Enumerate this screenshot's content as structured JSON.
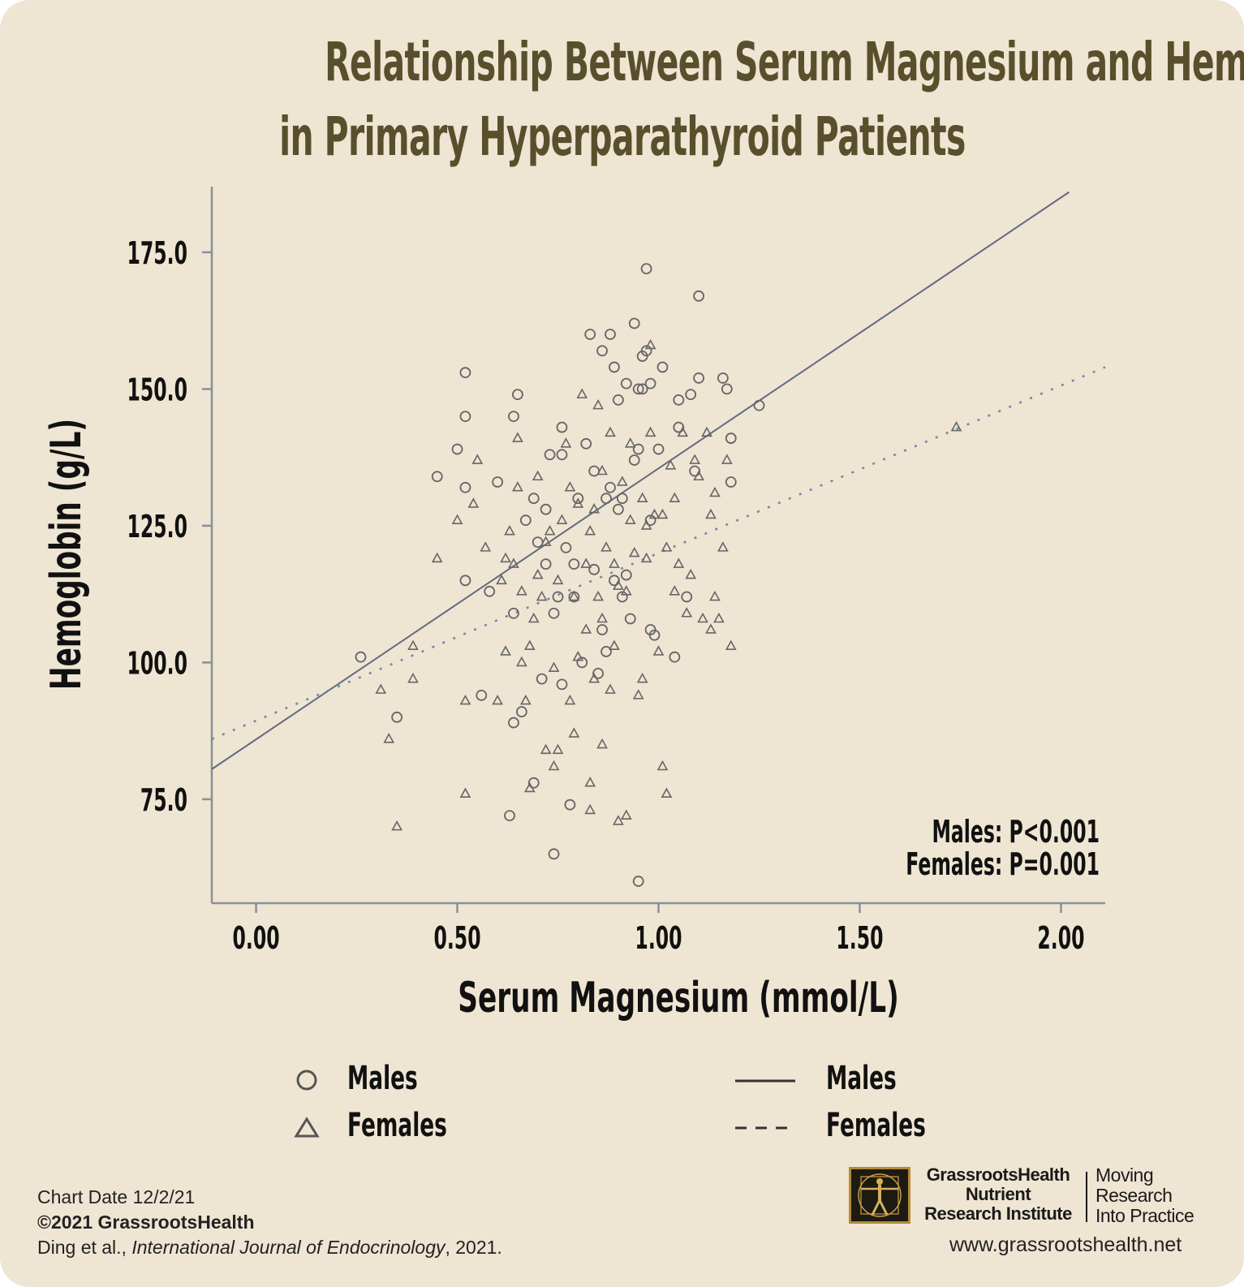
{
  "title": {
    "line1": "Relationship Between Serum Magnesium and Hemoglobin",
    "line2": "in Primary Hyperparathyroid Patients"
  },
  "chart_data": {
    "type": "scatter",
    "title": "Relationship Between Serum Magnesium and Hemoglobin in Primary Hyperparathyroid Patients",
    "xlabel": "Serum Magnesium (mmol/L)",
    "ylabel": "Hemoglobin (g/L)",
    "xlim": [
      -0.11,
      2.11
    ],
    "ylim": [
      56,
      187
    ],
    "xticks": [
      0.0,
      0.5,
      1.0,
      1.5,
      2.0
    ],
    "xtick_labels": [
      "0.00",
      "0.50",
      "1.00",
      "1.50",
      "2.00"
    ],
    "yticks": [
      75,
      100,
      125,
      150,
      175
    ],
    "ytick_labels": [
      "75.0",
      "100.0",
      "125.0",
      "150.0",
      "175.0"
    ],
    "grid": false,
    "annotations": [
      "Males: P<0.001",
      "Females: P=0.001"
    ],
    "series": [
      {
        "name": "Males",
        "marker": "circle",
        "points": [
          [
            0.26,
            101
          ],
          [
            0.35,
            90
          ],
          [
            0.45,
            134
          ],
          [
            0.5,
            139
          ],
          [
            0.52,
            153
          ],
          [
            0.52,
            145
          ],
          [
            0.52,
            132
          ],
          [
            0.52,
            115
          ],
          [
            0.56,
            94
          ],
          [
            0.58,
            113
          ],
          [
            0.6,
            133
          ],
          [
            0.63,
            72
          ],
          [
            0.64,
            109
          ],
          [
            0.64,
            89
          ],
          [
            0.64,
            145
          ],
          [
            0.65,
            149
          ],
          [
            0.66,
            91
          ],
          [
            0.67,
            126
          ],
          [
            0.69,
            78
          ],
          [
            0.69,
            130
          ],
          [
            0.7,
            122
          ],
          [
            0.71,
            97
          ],
          [
            0.72,
            118
          ],
          [
            0.72,
            128
          ],
          [
            0.73,
            138
          ],
          [
            0.74,
            65
          ],
          [
            0.74,
            109
          ],
          [
            0.75,
            112
          ],
          [
            0.76,
            143
          ],
          [
            0.76,
            96
          ],
          [
            0.76,
            138
          ],
          [
            0.77,
            121
          ],
          [
            0.78,
            74
          ],
          [
            0.79,
            112
          ],
          [
            0.79,
            118
          ],
          [
            0.8,
            130
          ],
          [
            0.81,
            100
          ],
          [
            0.82,
            140
          ],
          [
            0.83,
            160
          ],
          [
            0.84,
            117
          ],
          [
            0.84,
            135
          ],
          [
            0.85,
            98
          ],
          [
            0.86,
            157
          ],
          [
            0.86,
            106
          ],
          [
            0.87,
            102
          ],
          [
            0.87,
            130
          ],
          [
            0.88,
            160
          ],
          [
            0.88,
            132
          ],
          [
            0.89,
            154
          ],
          [
            0.89,
            115
          ],
          [
            0.9,
            148
          ],
          [
            0.9,
            128
          ],
          [
            0.91,
            130
          ],
          [
            0.91,
            112
          ],
          [
            0.92,
            151
          ],
          [
            0.92,
            116
          ],
          [
            0.93,
            108
          ],
          [
            0.94,
            162
          ],
          [
            0.94,
            137
          ],
          [
            0.95,
            139
          ],
          [
            0.95,
            150
          ],
          [
            0.95,
            60
          ],
          [
            0.96,
            156
          ],
          [
            0.96,
            150
          ],
          [
            0.97,
            172
          ],
          [
            0.97,
            157
          ],
          [
            0.98,
            151
          ],
          [
            0.98,
            106
          ],
          [
            0.98,
            126
          ],
          [
            0.99,
            105
          ],
          [
            1.0,
            139
          ],
          [
            1.01,
            154
          ],
          [
            1.04,
            101
          ],
          [
            1.05,
            148
          ],
          [
            1.05,
            143
          ],
          [
            1.07,
            112
          ],
          [
            1.08,
            149
          ],
          [
            1.09,
            135
          ],
          [
            1.1,
            167
          ],
          [
            1.1,
            152
          ],
          [
            1.16,
            152
          ],
          [
            1.17,
            150
          ],
          [
            1.18,
            141
          ],
          [
            1.18,
            133
          ],
          [
            1.25,
            147
          ]
        ]
      },
      {
        "name": "Females",
        "marker": "triangle",
        "points": [
          [
            0.31,
            95
          ],
          [
            0.33,
            86
          ],
          [
            0.35,
            70
          ],
          [
            0.39,
            97
          ],
          [
            0.39,
            103
          ],
          [
            0.45,
            119
          ],
          [
            0.5,
            126
          ],
          [
            0.52,
            93
          ],
          [
            0.52,
            76
          ],
          [
            0.54,
            129
          ],
          [
            0.55,
            137
          ],
          [
            0.57,
            121
          ],
          [
            0.6,
            93
          ],
          [
            0.61,
            115
          ],
          [
            0.62,
            119
          ],
          [
            0.62,
            102
          ],
          [
            0.63,
            124
          ],
          [
            0.64,
            118
          ],
          [
            0.65,
            141
          ],
          [
            0.65,
            132
          ],
          [
            0.66,
            113
          ],
          [
            0.66,
            100
          ],
          [
            0.67,
            93
          ],
          [
            0.68,
            77
          ],
          [
            0.68,
            103
          ],
          [
            0.69,
            108
          ],
          [
            0.7,
            116
          ],
          [
            0.7,
            134
          ],
          [
            0.71,
            112
          ],
          [
            0.72,
            84
          ],
          [
            0.72,
            122
          ],
          [
            0.73,
            124
          ],
          [
            0.74,
            81
          ],
          [
            0.74,
            99
          ],
          [
            0.75,
            84
          ],
          [
            0.75,
            115
          ],
          [
            0.76,
            126
          ],
          [
            0.77,
            140
          ],
          [
            0.78,
            93
          ],
          [
            0.78,
            132
          ],
          [
            0.79,
            87
          ],
          [
            0.79,
            112
          ],
          [
            0.8,
            101
          ],
          [
            0.8,
            129
          ],
          [
            0.81,
            149
          ],
          [
            0.82,
            106
          ],
          [
            0.82,
            118
          ],
          [
            0.83,
            78
          ],
          [
            0.83,
            73
          ],
          [
            0.83,
            124
          ],
          [
            0.84,
            97
          ],
          [
            0.84,
            128
          ],
          [
            0.85,
            147
          ],
          [
            0.85,
            112
          ],
          [
            0.86,
            85
          ],
          [
            0.86,
            108
          ],
          [
            0.86,
            135
          ],
          [
            0.87,
            121
          ],
          [
            0.88,
            95
          ],
          [
            0.88,
            142
          ],
          [
            0.89,
            103
          ],
          [
            0.89,
            118
          ],
          [
            0.9,
            71
          ],
          [
            0.9,
            114
          ],
          [
            0.91,
            133
          ],
          [
            0.92,
            72
          ],
          [
            0.92,
            113
          ],
          [
            0.93,
            126
          ],
          [
            0.93,
            140
          ],
          [
            0.94,
            120
          ],
          [
            0.95,
            94
          ],
          [
            0.96,
            97
          ],
          [
            0.96,
            130
          ],
          [
            0.97,
            119
          ],
          [
            0.97,
            125
          ],
          [
            0.98,
            158
          ],
          [
            0.98,
            142
          ],
          [
            0.99,
            127
          ],
          [
            1.0,
            102
          ],
          [
            1.01,
            81
          ],
          [
            1.01,
            127
          ],
          [
            1.02,
            76
          ],
          [
            1.02,
            121
          ],
          [
            1.03,
            136
          ],
          [
            1.04,
            113
          ],
          [
            1.04,
            130
          ],
          [
            1.05,
            118
          ],
          [
            1.06,
            142
          ],
          [
            1.07,
            109
          ],
          [
            1.08,
            116
          ],
          [
            1.09,
            137
          ],
          [
            1.1,
            134
          ],
          [
            1.11,
            108
          ],
          [
            1.12,
            142
          ],
          [
            1.13,
            106
          ],
          [
            1.13,
            127
          ],
          [
            1.14,
            131
          ],
          [
            1.14,
            112
          ],
          [
            1.15,
            108
          ],
          [
            1.16,
            121
          ],
          [
            1.17,
            137
          ],
          [
            1.18,
            103
          ],
          [
            1.74,
            143
          ]
        ]
      }
    ],
    "regression_lines": [
      {
        "name": "Males",
        "style": "solid",
        "x": [
          -0.11,
          2.02
        ],
        "y": [
          80.5,
          186
        ]
      },
      {
        "name": "Females",
        "style": "dashed",
        "x": [
          -0.11,
          2.11
        ],
        "y": [
          86,
          154
        ]
      }
    ],
    "legend": [
      {
        "label": "Males",
        "symbol": "circle"
      },
      {
        "label": "Females",
        "symbol": "triangle"
      },
      {
        "label": "Males",
        "symbol": "solid-line"
      },
      {
        "label": "Females",
        "symbol": "dashed-line"
      }
    ],
    "legend_position": "bottom"
  },
  "footer": {
    "chart_date": "Chart Date 12/2/21",
    "copyright": "©2021 GrassrootsHealth",
    "citation_prefix": "Ding et al., ",
    "citation_journal": "International Journal of Endocrinology",
    "citation_suffix": ", 2021."
  },
  "branding": {
    "org_line1": "GrassrootsHealth",
    "org_line2": "Nutrient",
    "org_line3": "Research Institute",
    "tagline_line1": "Moving",
    "tagline_line2": "Research",
    "tagline_line3": "Into Practice",
    "website": "www.grassrootshealth.net",
    "logo_icon": "vitruvian-man-icon"
  },
  "colors": {
    "background": "#efe5d3",
    "title": "#58502c",
    "marker": "#666666",
    "male_line": "#606a80",
    "female_line": "#6f8aa8",
    "axis": "#8a8f9a"
  }
}
